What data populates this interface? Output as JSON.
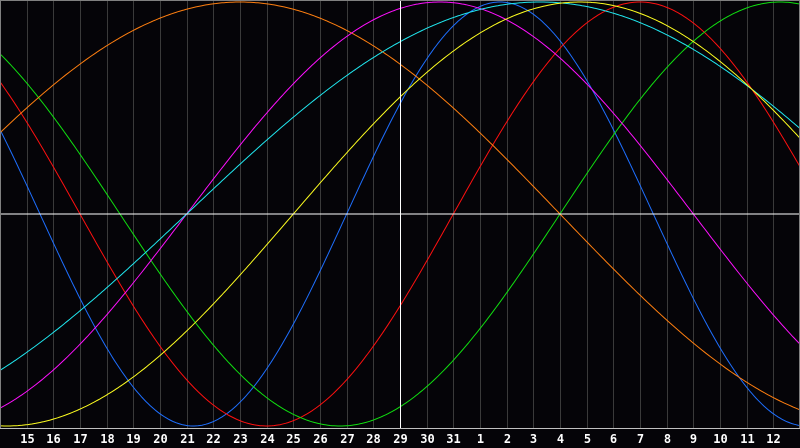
{
  "chart_data": {
    "type": "line",
    "title": "",
    "xlabel": "",
    "ylabel": "",
    "ylim": [
      -1,
      1
    ],
    "grid": true,
    "today_label": "29",
    "x_tick_labels": [
      "15",
      "16",
      "17",
      "18",
      "19",
      "20",
      "21",
      "22",
      "23",
      "24",
      "25",
      "26",
      "27",
      "28",
      "29",
      "30",
      "31",
      "1",
      "2",
      "3",
      "4",
      "5",
      "6",
      "7",
      "8",
      "9",
      "10",
      "11",
      "12"
    ],
    "series": [
      {
        "color": "#1e6fff",
        "cycle_length_days": 23,
        "cycle_day_today": 2
      },
      {
        "color": "#ff1010",
        "cycle_length_days": 28,
        "cycle_day_today": 26
      },
      {
        "color": "#10e010",
        "cycle_length_days": 33,
        "cycle_day_today": 27
      },
      {
        "color": "#ff7f10",
        "cycle_length_days": 48,
        "cycle_day_today": 18
      },
      {
        "color": "#ff10ff",
        "cycle_length_days": 38,
        "cycle_day_today": 8
      },
      {
        "color": "#20e8f0",
        "cycle_length_days": 53,
        "cycle_day_today": 8
      },
      {
        "color": "#ffff20",
        "cycle_length_days": 43,
        "cycle_day_today": 4
      }
    ]
  },
  "colors": {
    "background": "#050408",
    "grid": "#3a3a3a",
    "axis": "#ffffff",
    "border": "#808080"
  }
}
